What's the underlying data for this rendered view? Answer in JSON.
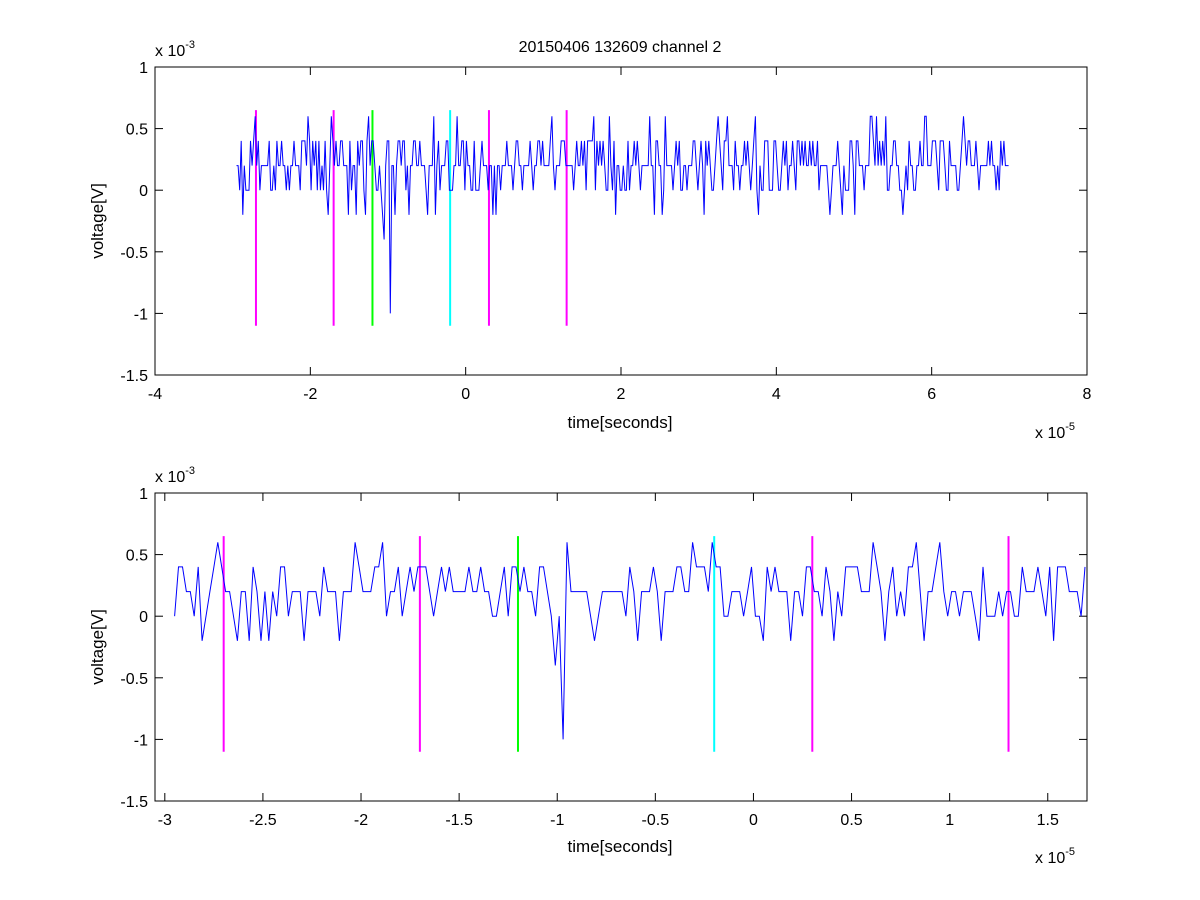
{
  "figure": {
    "title": "20150406 132609 channel 2"
  },
  "chart_data": [
    {
      "type": "line",
      "name": "overview",
      "xlabel": "time[seconds]",
      "ylabel": "voltage[V]",
      "x_exponent_label": "x 10",
      "x_exponent": "-5",
      "y_exponent_label": "x 10",
      "y_exponent": "-3",
      "xlim": [
        -4,
        8
      ],
      "ylim": [
        -1.5,
        1
      ],
      "x_ticks": [
        -4,
        -2,
        0,
        2,
        4,
        6,
        8
      ],
      "x_tick_labels": [
        "-4",
        "-2",
        "0",
        "2",
        "4",
        "6",
        "8"
      ],
      "y_ticks": [
        -1.5,
        -1,
        -0.5,
        0,
        0.5,
        1
      ],
      "y_tick_labels": [
        "-1.5",
        "-1",
        "-0.5",
        "0",
        "0.5",
        "1"
      ],
      "grid": false,
      "signal": {
        "color": "#0000ff",
        "x_start": -2.95,
        "x_end": 7.0,
        "levels": [
          -0.2,
          0,
          0.2,
          0.4,
          0.6
        ],
        "baseline": 0.2,
        "spikes": [
          {
            "x": -2.7,
            "y": 0.6
          },
          {
            "x": -0.97,
            "y": -1.0
          },
          {
            "x": -1.05,
            "y": -0.4
          },
          {
            "x": 1.85,
            "y": 0.6
          },
          {
            "x": 3.25,
            "y": 0.6
          },
          {
            "x": 5.2,
            "y": 0.6
          },
          {
            "x": 5.9,
            "y": 0.6
          },
          {
            "x": 6.4,
            "y": 0.6
          }
        ]
      },
      "markers": [
        {
          "x": -2.7,
          "color": "#ff00ff",
          "y_range": [
            -1.1,
            0.65
          ]
        },
        {
          "x": -1.7,
          "color": "#ff00ff",
          "y_range": [
            -1.1,
            0.65
          ]
        },
        {
          "x": -1.2,
          "color": "#00ff00",
          "y_range": [
            -1.1,
            0.65
          ]
        },
        {
          "x": -0.2,
          "color": "#00ffff",
          "y_range": [
            -1.1,
            0.65
          ]
        },
        {
          "x": 0.3,
          "color": "#ff00ff",
          "y_range": [
            -1.1,
            0.65
          ]
        },
        {
          "x": 1.3,
          "color": "#ff00ff",
          "y_range": [
            -1.1,
            0.65
          ]
        }
      ]
    },
    {
      "type": "line",
      "name": "zoom",
      "xlabel": "time[seconds]",
      "ylabel": "voltage[V]",
      "x_exponent_label": "x 10",
      "x_exponent": "-5",
      "y_exponent_label": "x 10",
      "y_exponent": "-3",
      "xlim": [
        -3.05,
        1.7
      ],
      "ylim": [
        -1.5,
        1
      ],
      "x_ticks": [
        -3,
        -2.5,
        -2,
        -1.5,
        -1,
        -0.5,
        0,
        0.5,
        1,
        1.5
      ],
      "x_tick_labels": [
        "-3",
        "-2.5",
        "-2",
        "-1.5",
        "-1",
        "-0.5",
        "0",
        "0.5",
        "1",
        "1.5"
      ],
      "y_ticks": [
        -1.5,
        -1,
        -0.5,
        0,
        0.5,
        1
      ],
      "y_tick_labels": [
        "-1.5",
        "-1",
        "-0.5",
        "0",
        "0.5",
        "1"
      ],
      "grid": false,
      "signal": {
        "color": "#0000ff",
        "x_start": -2.95,
        "x_end": 1.7,
        "levels": [
          -0.2,
          0,
          0.2,
          0.4,
          0.6
        ],
        "baseline": 0.2,
        "spikes": [
          {
            "x": -2.72,
            "y": 0.6
          },
          {
            "x": -0.97,
            "y": -1.0
          },
          {
            "x": -1.0,
            "y": -0.4
          },
          {
            "x": -0.95,
            "y": 0.6
          },
          {
            "x": 0.62,
            "y": 0.6
          },
          {
            "x": 0.95,
            "y": 0.6
          }
        ]
      },
      "markers": [
        {
          "x": -2.7,
          "color": "#ff00ff",
          "y_range": [
            -1.1,
            0.65
          ]
        },
        {
          "x": -1.7,
          "color": "#ff00ff",
          "y_range": [
            -1.1,
            0.65
          ]
        },
        {
          "x": -1.2,
          "color": "#00ff00",
          "y_range": [
            -1.1,
            0.65
          ]
        },
        {
          "x": -0.2,
          "color": "#00ffff",
          "y_range": [
            -1.1,
            0.65
          ]
        },
        {
          "x": 0.3,
          "color": "#ff00ff",
          "y_range": [
            -1.1,
            0.65
          ]
        },
        {
          "x": 1.3,
          "color": "#ff00ff",
          "y_range": [
            -1.1,
            0.65
          ]
        }
      ]
    }
  ]
}
